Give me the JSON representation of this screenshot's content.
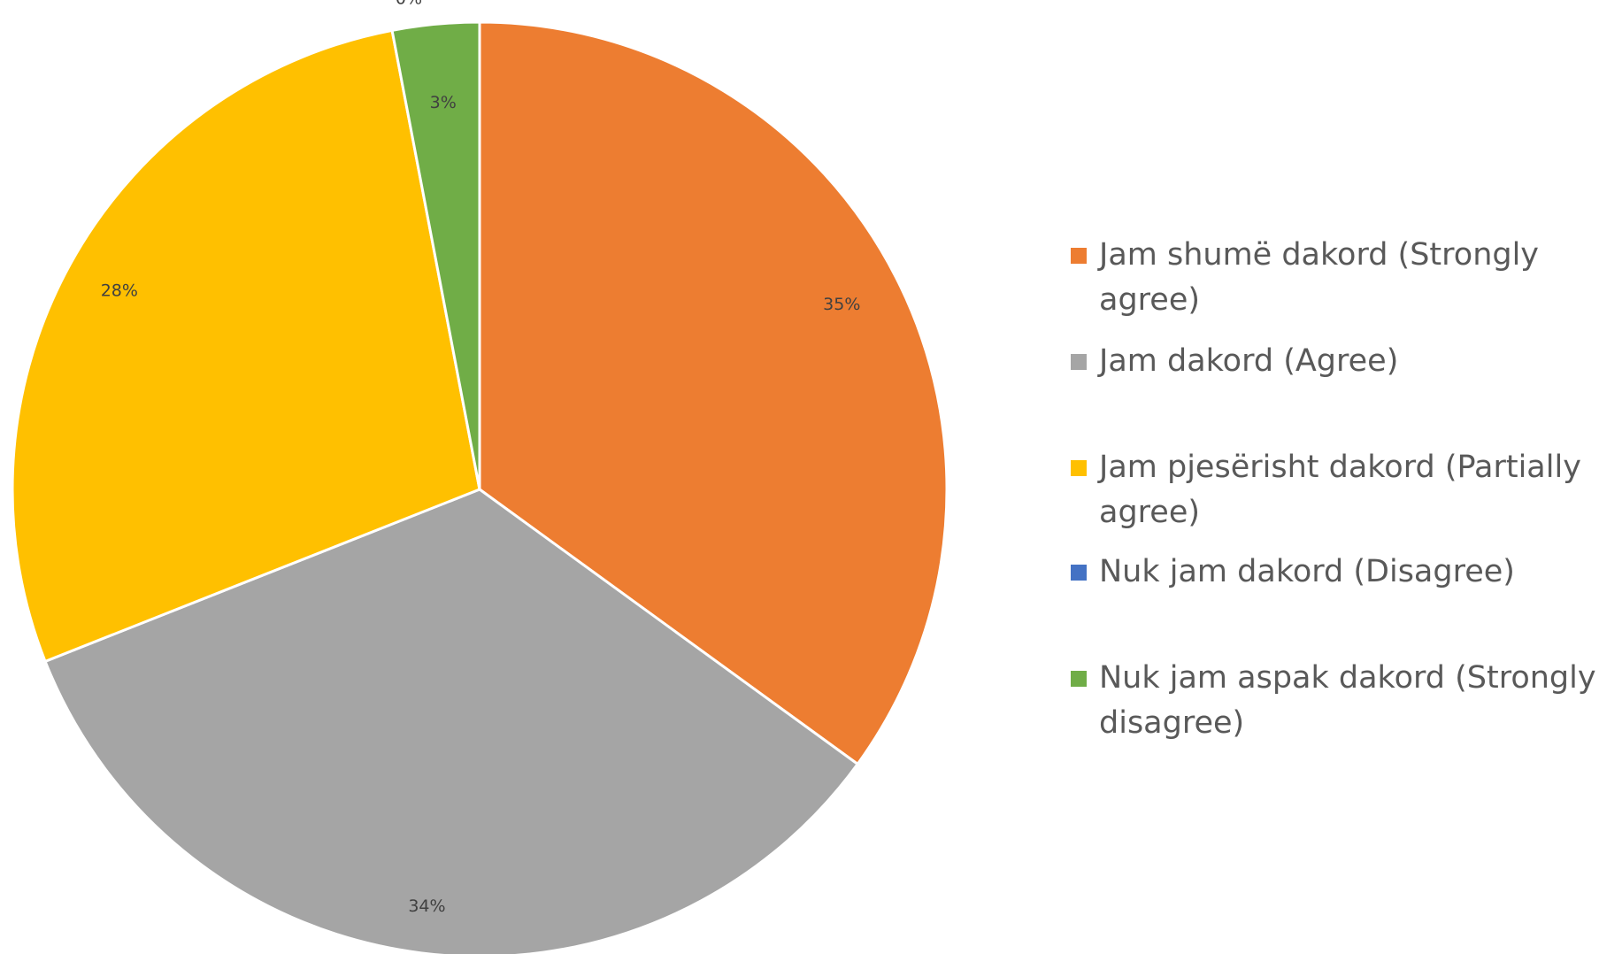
{
  "chart_data": {
    "type": "pie",
    "title": "",
    "slices": [
      {
        "label": "Jam shumë dakord (Strongly agree)",
        "value": 35,
        "display": "35%",
        "color": "#ED7D31"
      },
      {
        "label": "Jam dakord (Agree)",
        "value": 34,
        "display": "34%",
        "color": "#A5A5A5"
      },
      {
        "label": "Jam pjesërisht dakord (Partially agree)",
        "value": 28,
        "display": "28%",
        "color": "#FFC000"
      },
      {
        "label": "Nuk jam dakord (Disagree)",
        "value": 0,
        "display": "0%",
        "color": "#4472C4"
      },
      {
        "label": "Nuk jam aspak dakord (Strongly disagree)",
        "value": 3,
        "display": "3%",
        "color": "#70AD47"
      }
    ],
    "legend_position": "right",
    "start": "top",
    "direction": "clockwise"
  },
  "legend": {
    "items": [
      {
        "lines": [
          "Jam shumë dakord (Strongly",
          "agree)"
        ]
      },
      {
        "lines": [
          "Jam dakord (Agree)"
        ]
      },
      {
        "lines": [
          "Jam pjesërisht dakord (Partially",
          "agree)"
        ]
      },
      {
        "lines": [
          "Nuk jam dakord (Disagree)"
        ]
      },
      {
        "lines": [
          "Nuk jam aspak dakord (Strongly",
          "disagree)"
        ]
      }
    ]
  }
}
